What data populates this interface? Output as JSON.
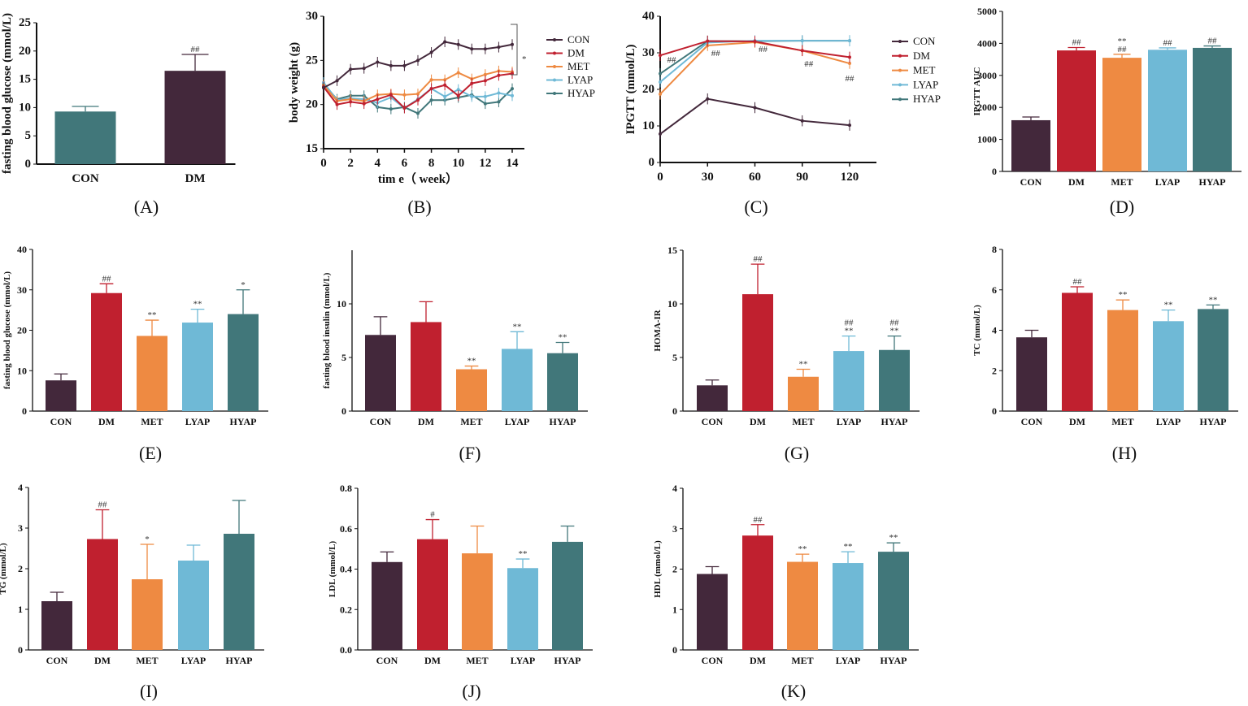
{
  "colors": {
    "CON": "#43283b",
    "DM": "#c0202f",
    "MET": "#ee8a42",
    "LYAP": "#6fb9d6",
    "HYAP": "#41777a"
  },
  "chart_data": [
    {
      "panel": "(A)",
      "type": "bar",
      "ylabel": "fasting blood glucose (mmol/L)",
      "ylim": [
        0,
        25
      ],
      "yticks": [
        "0",
        "5",
        "10",
        "15",
        "20",
        "25"
      ],
      "categories": [
        "CON",
        "DM"
      ],
      "values": [
        9.3,
        16.5
      ],
      "errors": [
        10.2,
        19.4
      ],
      "annotations": [
        "",
        "##"
      ],
      "bar_colors": [
        "#41777a",
        "#43283b"
      ]
    },
    {
      "panel": "(B)",
      "type": "line",
      "ylabel": "body weight (g)",
      "xlabel": "tim e（ week）",
      "ylim": [
        15,
        30
      ],
      "xlim": [
        0,
        14
      ],
      "yticks": [
        "15",
        "20",
        "25",
        "30"
      ],
      "xticks": [
        "0",
        "2",
        "4",
        "6",
        "8",
        "10",
        "12",
        "14"
      ],
      "x": [
        0,
        1,
        2,
        3,
        4,
        5,
        6,
        7,
        8,
        9,
        10,
        11,
        12,
        13,
        14
      ],
      "significance": "*",
      "series": [
        {
          "name": "CON",
          "values": [
            21.9,
            22.7,
            24.0,
            24.1,
            24.8,
            24.4,
            24.4,
            25.0,
            25.9,
            27.1,
            26.8,
            26.3,
            26.3,
            26.5,
            26.8
          ]
        },
        {
          "name": "DM",
          "values": [
            22.0,
            20.0,
            20.3,
            20.1,
            20.6,
            21.1,
            19.6,
            20.5,
            21.8,
            22.2,
            21.0,
            22.4,
            22.7,
            23.3,
            23.5
          ]
        },
        {
          "name": "MET",
          "values": [
            22.2,
            20.4,
            20.6,
            20.4,
            21.1,
            21.2,
            21.1,
            21.2,
            22.8,
            22.8,
            23.6,
            22.9,
            23.4,
            23.8,
            23.7
          ]
        },
        {
          "name": "LYAP",
          "values": [
            22.5,
            20.5,
            20.7,
            20.6,
            20.2,
            20.8,
            19.6,
            20.6,
            21.8,
            20.9,
            21.7,
            20.9,
            20.9,
            21.3,
            21.0
          ]
        },
        {
          "name": "HYAP",
          "values": [
            22.3,
            20.6,
            21.0,
            21.0,
            19.7,
            19.5,
            19.7,
            19.0,
            20.5,
            20.5,
            20.8,
            21.1,
            20.1,
            20.3,
            21.8
          ]
        }
      ]
    },
    {
      "panel": "(C)",
      "type": "line",
      "ylabel": "IPGTT (mmol/L)",
      "ylim": [
        0,
        40
      ],
      "xlim": [
        0,
        135
      ],
      "yticks": [
        "0",
        "10",
        "20",
        "30",
        "40"
      ],
      "xticks": [
        "0",
        "30",
        "60",
        "90",
        "120"
      ],
      "x": [
        0,
        30,
        60,
        90,
        120
      ],
      "annotations": [
        "##",
        "##",
        "##",
        "##",
        "##"
      ],
      "series": [
        {
          "name": "CON",
          "values": [
            7.8,
            17.4,
            15.0,
            11.4,
            10.2
          ]
        },
        {
          "name": "DM",
          "values": [
            29.3,
            33.2,
            33.1,
            30.6,
            28.8
          ]
        },
        {
          "name": "MET",
          "values": [
            18.7,
            32.0,
            32.9,
            30.6,
            27.1
          ]
        },
        {
          "name": "LYAP",
          "values": [
            22.0,
            32.8,
            33.3,
            33.3,
            33.3
          ]
        },
        {
          "name": "HYAP",
          "values": [
            24.3,
            33.2,
            33.2,
            33.3,
            33.3
          ]
        }
      ]
    },
    {
      "panel": "(D)",
      "type": "bar",
      "ylabel": "IPGTT AUC",
      "ylim": [
        0,
        5000
      ],
      "yticks": [
        "0",
        "1000",
        "2000",
        "3000",
        "4000",
        "5000"
      ],
      "categories": [
        "CON",
        "DM",
        "MET",
        "LYAP",
        "HYAP"
      ],
      "values": [
        1600,
        3780,
        3550,
        3800,
        3860
      ],
      "errors": [
        1700,
        3870,
        3660,
        3860,
        3920
      ],
      "annotations": [
        "",
        "##",
        "**\n##",
        "##",
        "##"
      ]
    },
    {
      "panel": "(E)",
      "type": "bar",
      "ylabel": "fasting blood glucose (mmol/L)",
      "ylim": [
        0,
        40
      ],
      "yticks": [
        "0",
        "10",
        "20",
        "30",
        "40"
      ],
      "categories": [
        "CON",
        "DM",
        "MET",
        "LYAP",
        "HYAP"
      ],
      "values": [
        7.6,
        29.2,
        18.6,
        21.9,
        24.0
      ],
      "errors": [
        9.2,
        31.5,
        22.5,
        25.2,
        30.0
      ],
      "annotations": [
        "",
        "##",
        "**",
        "**",
        "*"
      ]
    },
    {
      "panel": "(F)",
      "type": "bar",
      "ylabel": "fasting blood insulin (mmol/L)",
      "ylim": [
        0,
        15
      ],
      "yticks": [
        "0",
        "5",
        "10"
      ],
      "categories": [
        "CON",
        "DM",
        "MET",
        "LYAP",
        "HYAP"
      ],
      "values": [
        7.1,
        8.3,
        3.9,
        5.8,
        5.4
      ],
      "errors": [
        8.8,
        10.2,
        4.2,
        7.4,
        6.4
      ],
      "annotations": [
        "",
        "",
        "**",
        "**",
        "**"
      ]
    },
    {
      "panel": "(G)",
      "type": "bar",
      "ylabel": "HOMA-IR",
      "ylim": [
        0,
        15
      ],
      "yticks": [
        "0",
        "5",
        "10",
        "15"
      ],
      "categories": [
        "CON",
        "DM",
        "MET",
        "LYAP",
        "HYAP"
      ],
      "values": [
        2.4,
        10.9,
        3.2,
        5.6,
        5.7
      ],
      "errors": [
        2.9,
        13.7,
        3.9,
        7.0,
        7.0
      ],
      "annotations": [
        "",
        "##",
        "**",
        "##\n**",
        "##\n**"
      ]
    },
    {
      "panel": "(H)",
      "type": "bar",
      "ylabel": "TC (mmol/L)",
      "ylim": [
        0,
        8
      ],
      "yticks": [
        "0",
        "2",
        "4",
        "6",
        "8"
      ],
      "categories": [
        "CON",
        "DM",
        "MET",
        "LYAP",
        "HYAP"
      ],
      "values": [
        3.65,
        5.85,
        5.0,
        4.45,
        5.05
      ],
      "errors": [
        4.0,
        6.15,
        5.5,
        5.0,
        5.25
      ],
      "annotations": [
        "",
        "##",
        "**",
        "**",
        "**"
      ]
    },
    {
      "panel": "(I)",
      "type": "bar",
      "ylabel": "TG (mmol/L)",
      "ylim": [
        0,
        4
      ],
      "yticks": [
        "0",
        "1",
        "2",
        "3",
        "4"
      ],
      "categories": [
        "CON",
        "DM",
        "MET",
        "LYAP",
        "HYAP"
      ],
      "values": [
        1.2,
        2.73,
        1.74,
        2.2,
        2.86
      ],
      "errors": [
        1.42,
        3.45,
        2.6,
        2.58,
        3.68
      ],
      "annotations": [
        "",
        "##",
        "*",
        "",
        ""
      ]
    },
    {
      "panel": "(J)",
      "type": "bar",
      "ylabel": "LDL (mmol/L)",
      "ylim": [
        0,
        0.8
      ],
      "yticks": [
        "0.0",
        "0.2",
        "0.4",
        "0.6",
        "0.8"
      ],
      "categories": [
        "CON",
        "DM",
        "MET",
        "LYAP",
        "HYAP"
      ],
      "values": [
        0.435,
        0.548,
        0.478,
        0.405,
        0.535
      ],
      "errors": [
        0.485,
        0.645,
        0.613,
        0.45,
        0.613
      ],
      "annotations": [
        "",
        "#",
        "",
        "**",
        ""
      ]
    },
    {
      "panel": "(K)",
      "type": "bar",
      "ylabel": "HDL (mmol/L)",
      "ylim": [
        0,
        4
      ],
      "yticks": [
        "0",
        "1",
        "2",
        "3",
        "4"
      ],
      "categories": [
        "CON",
        "DM",
        "MET",
        "LYAP",
        "HYAP"
      ],
      "values": [
        1.88,
        2.83,
        2.18,
        2.15,
        2.43
      ],
      "errors": [
        2.06,
        3.1,
        2.37,
        2.43,
        2.65
      ],
      "annotations": [
        "",
        "##",
        "**",
        "**",
        "**"
      ]
    }
  ]
}
